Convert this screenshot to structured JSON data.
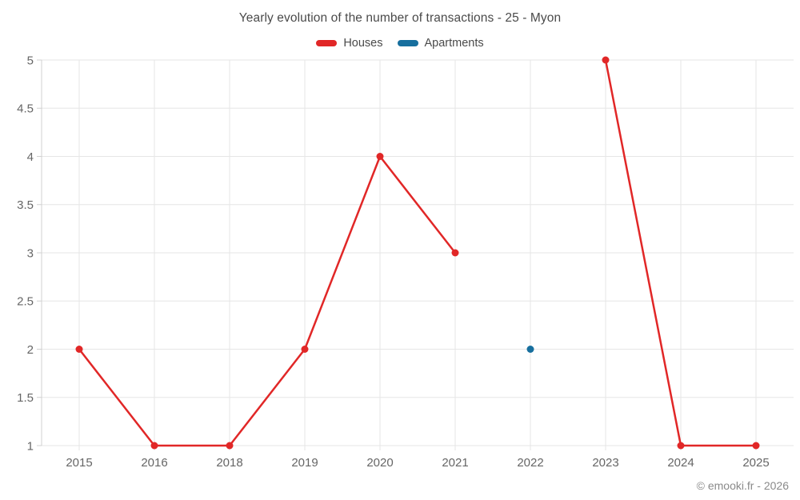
{
  "footer": {
    "credit": "© emooki.fr - 2026"
  },
  "chart_data": {
    "type": "line",
    "title": "Yearly evolution of the number of transactions - 25 - Myon",
    "categories": [
      "2015",
      "2016",
      "2018",
      "2019",
      "2020",
      "2021",
      "2022",
      "2023",
      "2024",
      "2025"
    ],
    "series": [
      {
        "name": "Houses",
        "color": "#e12727",
        "values": [
          2,
          1,
          1,
          2,
          4,
          3,
          null,
          5,
          1,
          1
        ]
      },
      {
        "name": "Apartments",
        "color": "#176f9e",
        "values": [
          null,
          null,
          null,
          null,
          null,
          null,
          2,
          null,
          null,
          null
        ]
      }
    ],
    "ylim": [
      1,
      5
    ],
    "yticks": [
      1,
      1.5,
      2,
      2.5,
      3,
      3.5,
      4,
      4.5,
      5
    ],
    "grid": true,
    "legend_position": "top",
    "marker_radius": 4.5,
    "line_width": 2.5,
    "grid_color": "#e6e6e6",
    "axis_color": "#d0d0d0"
  }
}
